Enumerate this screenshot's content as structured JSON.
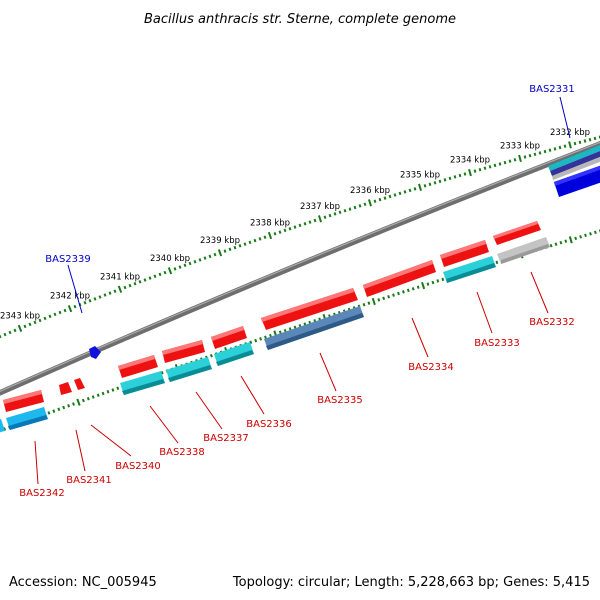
{
  "title": "Bacillus anthracis str. Sterne, complete genome",
  "footer": {
    "accession": "Accession: NC_005945",
    "summary": "Topology: circular; Length: 5,228,663 bp; Genes: 5,415"
  },
  "colors": {
    "backbone": "#808080",
    "tick": "#1a7a1a",
    "forward_gene": "#ee1111",
    "reverse_gene": "#11bbcc",
    "blue_gene": "#1111dd",
    "steel_gene": "#4a78a8",
    "grey_gene": "#bbbbbb",
    "label_red": "#cc0000",
    "label_blue": "#0000cc"
  },
  "kbp_labels": [
    "2332 kbp",
    "2333 kbp",
    "2334 kbp",
    "2335 kbp",
    "2336 kbp",
    "2337 kbp",
    "2338 kbp",
    "2339 kbp",
    "2340 kbp",
    "2341 kbp",
    "2342 kbp",
    "2343 kbp"
  ],
  "gene_labels": {
    "BAS2331": "BAS2331",
    "BAS2332": "BAS2332",
    "BAS2333": "BAS2333",
    "BAS2334": "BAS2334",
    "BAS2335": "BAS2335",
    "BAS2336": "BAS2336",
    "BAS2337": "BAS2337",
    "BAS2338": "BAS2338",
    "BAS2339": "BAS2339",
    "BAS2340": "BAS2340",
    "BAS2341": "BAS2341",
    "BAS2342": "BAS2342"
  }
}
